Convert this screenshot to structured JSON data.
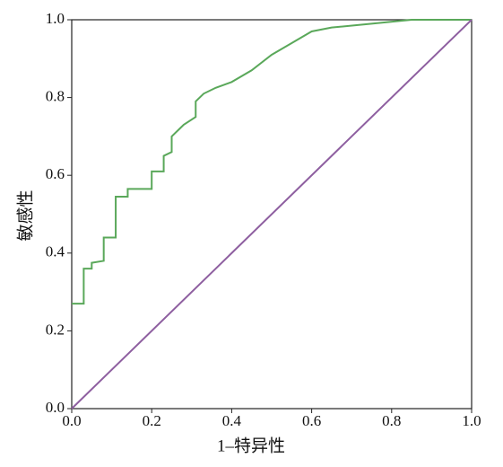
{
  "chart_data": {
    "type": "line",
    "x_label": "1–特异性",
    "y_label": "敏感性",
    "xlim": [
      0,
      1
    ],
    "ylim": [
      0,
      1
    ],
    "xticks": [
      {
        "value": 0,
        "label": "0.0"
      },
      0.2,
      0.4,
      0.6,
      0.8,
      {
        "value": 1,
        "label": "1.0"
      }
    ],
    "yticks": [
      {
        "value": 0,
        "label": "0.0"
      },
      0.2,
      0.4,
      0.6,
      0.8,
      {
        "value": 1,
        "label": "1.0"
      }
    ],
    "series": [
      {
        "color": "#5aa85a",
        "x": [
          0,
          0.03,
          0.03,
          0.05,
          0.05,
          0.08,
          0.08,
          0.11,
          0.11,
          0.14,
          0.14,
          0.2,
          0.2,
          0.23,
          0.23,
          0.25,
          0.25,
          0.27,
          0.28,
          0.31,
          0.31,
          0.33,
          0.36,
          0.4,
          0.45,
          0.5,
          0.55,
          0.6,
          0.65,
          0.75,
          0.85,
          1
        ],
        "values": [
          0.27,
          0.27,
          0.36,
          0.36,
          0.375,
          0.38,
          0.44,
          0.44,
          0.545,
          0.545,
          0.565,
          0.565,
          0.61,
          0.61,
          0.65,
          0.66,
          0.7,
          0.72,
          0.73,
          0.75,
          0.79,
          0.81,
          0.825,
          0.84,
          0.87,
          0.91,
          0.94,
          0.97,
          0.98,
          0.99,
          1,
          1
        ]
      },
      {
        "color": "#8e5fa0",
        "x": [
          0,
          1
        ],
        "values": [
          0,
          1
        ]
      }
    ]
  }
}
